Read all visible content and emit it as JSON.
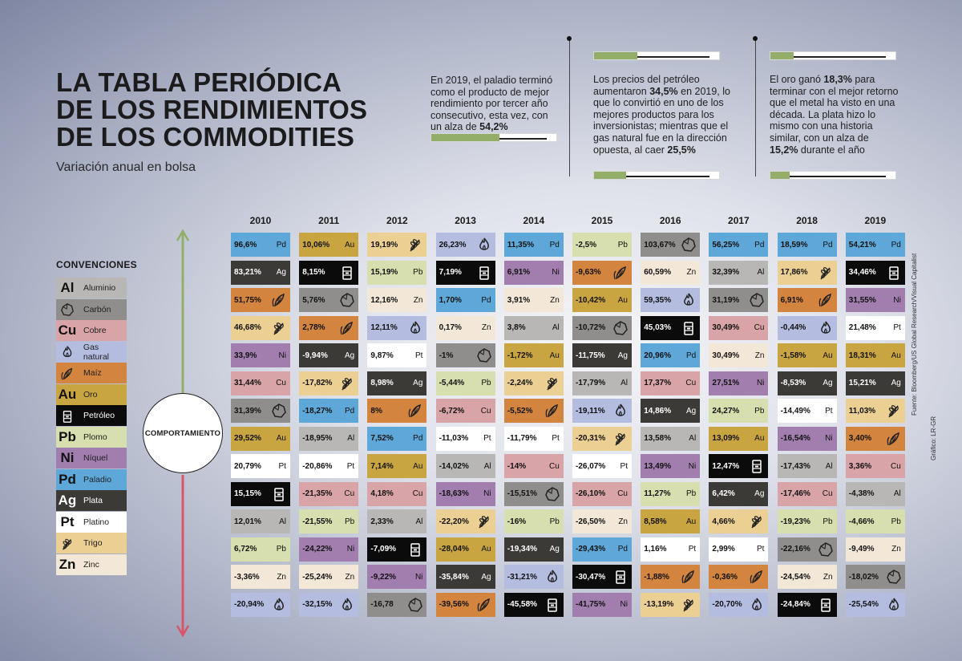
{
  "title": [
    "LA TABLA PERIÓDICA",
    "DE LOS RENDIMIENTOS",
    "DE LOS COMMODITIES"
  ],
  "subtitle": "Variación anual en bolsa",
  "notes": {
    "palladium": {
      "text": "En 2019, el paladio terminó como el producto de mejor rendimiento por tercer año consecutivo, esta vez, con un alza de ",
      "highlight": "54,2%",
      "bar_fraction": 0.542
    },
    "oil": {
      "text_a": "Los precios del petróleo aumentaron ",
      "highlight_a": "34,5%",
      "text_b": " en 2019, lo que lo convirtió en uno de los mejores productos para los inversionistas; mientras que el gas natural fue en la dirección opuesta, al caer ",
      "highlight_b": "25,5%",
      "bar_a_fraction": 0.345,
      "bar_b_fraction": 0.255
    },
    "gold": {
      "text_a": "El oro ganó ",
      "highlight_a": "18,3%",
      "text_b": " para terminar con el mejor retorno que el metal ha visto en una década. La plata hizo lo mismo con una historia similar, con un alza de ",
      "highlight_b": "15,2%",
      "text_c": " durante el año",
      "bar_a_fraction": 0.183,
      "bar_b_fraction": 0.152
    }
  },
  "conventions_title": "CONVENCIONES",
  "colors": {
    "Al": "#b8b7b5",
    "Carbon": "#8f8e8c",
    "Cu": "#d9a4a8",
    "Gas": "#b4bde0",
    "Maiz": "#d3843f",
    "Au": "#c9a542",
    "Petroleo": "#0b0b0b",
    "Pb": "#d7dfae",
    "Ni": "#a17eae",
    "Pd": "#5ea8d9",
    "Ag": "#3c3a37",
    "Pt": "#ffffff",
    "Trigo": "#ecd093",
    "Zn": "#f3e8d7"
  },
  "legend": [
    {
      "key": "Al",
      "symbol": "Al",
      "icon": "",
      "name": "Aluminio"
    },
    {
      "key": "Carbon",
      "symbol": "",
      "icon": "coal-icon",
      "name": "Carbón"
    },
    {
      "key": "Cu",
      "symbol": "Cu",
      "icon": "",
      "name": "Cobre"
    },
    {
      "key": "Gas",
      "symbol": "",
      "icon": "flame-icon",
      "name": "Gas natural"
    },
    {
      "key": "Maiz",
      "symbol": "",
      "icon": "corn-icon",
      "name": "Maíz"
    },
    {
      "key": "Au",
      "symbol": "Au",
      "icon": "",
      "name": "Oro"
    },
    {
      "key": "Petroleo",
      "symbol": "",
      "icon": "oil-barrel-icon",
      "name": "Petróleo"
    },
    {
      "key": "Pb",
      "symbol": "Pb",
      "icon": "",
      "name": "Plomo"
    },
    {
      "key": "Ni",
      "symbol": "Ni",
      "icon": "",
      "name": "Níquel"
    },
    {
      "key": "Pd",
      "symbol": "Pd",
      "icon": "",
      "name": "Paladio"
    },
    {
      "key": "Ag",
      "symbol": "Ag",
      "icon": "",
      "name": "Plata"
    },
    {
      "key": "Pt",
      "symbol": "Pt",
      "icon": "",
      "name": "Platino"
    },
    {
      "key": "Trigo",
      "symbol": "",
      "icon": "wheat-icon",
      "name": "Trigo"
    },
    {
      "key": "Zn",
      "symbol": "Zn",
      "icon": "",
      "name": "Zinc"
    }
  ],
  "behavior_label": "COMPORTAMIENTO",
  "source": "Fuente: Bloomberg/US Global Research/Visual Capitalist",
  "credit": "Gráfico: LR-GR",
  "chart_data": {
    "type": "table",
    "columns": [
      {
        "year": "2010",
        "cells": [
          [
            "96,6%",
            "Pd"
          ],
          [
            "83,21%",
            "Ag"
          ],
          [
            "51,75%",
            "Maiz"
          ],
          [
            "46,68%",
            "Trigo"
          ],
          [
            "33,9%",
            "Ni"
          ],
          [
            "31,44%",
            "Cu"
          ],
          [
            "31,39%",
            "Carbon"
          ],
          [
            "29,52%",
            "Au"
          ],
          [
            "20,79%",
            "Pt"
          ],
          [
            "15,15%",
            "Petroleo"
          ],
          [
            "12,01%",
            "Al"
          ],
          [
            "6,72%",
            "Pb"
          ],
          [
            "-3,36%",
            "Zn"
          ],
          [
            "-20,94%",
            "Gas"
          ]
        ]
      },
      {
        "year": "2011",
        "cells": [
          [
            "10,06%",
            "Au"
          ],
          [
            "8,15%",
            "Petroleo"
          ],
          [
            "5,76%",
            "Carbon"
          ],
          [
            "2,78%",
            "Maiz"
          ],
          [
            "-9,94%",
            "Ag"
          ],
          [
            "-17,82%",
            "Trigo"
          ],
          [
            "-18,27%",
            "Pd"
          ],
          [
            "-18,95%",
            "Al"
          ],
          [
            "-20,86%",
            "Pt"
          ],
          [
            "-21,35%",
            "Cu"
          ],
          [
            "-21,55%",
            "Pb"
          ],
          [
            "-24,22%",
            "Ni"
          ],
          [
            "-25,24%",
            "Zn"
          ],
          [
            "-32,15%",
            "Gas"
          ]
        ]
      },
      {
        "year": "2012",
        "cells": [
          [
            "19,19%",
            "Trigo"
          ],
          [
            "15,19%",
            "Pb"
          ],
          [
            "12,16%",
            "Zn"
          ],
          [
            "12,11%",
            "Gas"
          ],
          [
            "9,87%",
            "Pt"
          ],
          [
            "8,98%",
            "Ag"
          ],
          [
            "8%",
            "Maiz"
          ],
          [
            "7,52%",
            "Pd"
          ],
          [
            "7,14%",
            "Au"
          ],
          [
            "4,18%",
            "Cu"
          ],
          [
            "2,33%",
            "Al"
          ],
          [
            "-7,09%",
            "Petroleo"
          ],
          [
            "-9,22%",
            "Ni"
          ],
          [
            "-16,78",
            "Carbon"
          ]
        ]
      },
      {
        "year": "2013",
        "cells": [
          [
            "26,23%",
            "Gas"
          ],
          [
            "7,19%",
            "Petroleo"
          ],
          [
            "1,70%",
            "Pd"
          ],
          [
            "0,17%",
            "Zn"
          ],
          [
            "-1%",
            "Carbon"
          ],
          [
            "-5,44%",
            "Pb"
          ],
          [
            "-6,72%",
            "Cu"
          ],
          [
            "-11,03%",
            "Pt"
          ],
          [
            "-14,02%",
            "Al"
          ],
          [
            "-18,63%",
            "Ni"
          ],
          [
            "-22,20%",
            "Trigo"
          ],
          [
            "-28,04%",
            "Au"
          ],
          [
            "-35,84%",
            "Ag"
          ],
          [
            "-39,56%",
            "Maiz"
          ]
        ]
      },
      {
        "year": "2014",
        "cells": [
          [
            "11,35%",
            "Pd"
          ],
          [
            "6,91%",
            "Ni"
          ],
          [
            "3,91%",
            "Zn"
          ],
          [
            "3,8%",
            "Al"
          ],
          [
            "-1,72%",
            "Au"
          ],
          [
            "-2,24%",
            "Trigo"
          ],
          [
            "-5,52%",
            "Maiz"
          ],
          [
            "-11,79%",
            "Pt"
          ],
          [
            "-14%",
            "Cu"
          ],
          [
            "-15,51%",
            "Carbon"
          ],
          [
            "-16%",
            "Pb"
          ],
          [
            "-19,34%",
            "Ag"
          ],
          [
            "-31,21%",
            "Gas"
          ],
          [
            "-45,58%",
            "Petroleo"
          ]
        ]
      },
      {
        "year": "2015",
        "cells": [
          [
            "-2,5%",
            "Pb"
          ],
          [
            "-9,63%",
            "Maiz"
          ],
          [
            "-10,42%",
            "Au"
          ],
          [
            "-10,72%",
            "Carbon"
          ],
          [
            "-11,75%",
            "Ag"
          ],
          [
            "-17,79%",
            "Al"
          ],
          [
            "-19,11%",
            "Gas"
          ],
          [
            "-20,31%",
            "Trigo"
          ],
          [
            "-26,07%",
            "Pt"
          ],
          [
            "-26,10%",
            "Cu"
          ],
          [
            "-26,50%",
            "Zn"
          ],
          [
            "-29,43%",
            "Pd"
          ],
          [
            "-30,47%",
            "Petroleo"
          ],
          [
            "-41,75%",
            "Ni"
          ]
        ]
      },
      {
        "year": "2016",
        "cells": [
          [
            "103,67%",
            "Carbon"
          ],
          [
            "60,59%",
            "Zn"
          ],
          [
            "59,35%",
            "Gas"
          ],
          [
            "45,03%",
            "Petroleo"
          ],
          [
            "20,96%",
            "Pd"
          ],
          [
            "17,37%",
            "Cu"
          ],
          [
            "14,86%",
            "Ag"
          ],
          [
            "13,58%",
            "Al"
          ],
          [
            "13,49%",
            "Ni"
          ],
          [
            "11,27%",
            "Pb"
          ],
          [
            "8,58%",
            "Au"
          ],
          [
            "1,16%",
            "Pt"
          ],
          [
            "-1,88%",
            "Maiz"
          ],
          [
            "-13,19%",
            "Trigo"
          ]
        ]
      },
      {
        "year": "2017",
        "cells": [
          [
            "56,25%",
            "Pd"
          ],
          [
            "32,39%",
            "Al"
          ],
          [
            "31,19%",
            "Carbon"
          ],
          [
            "30,49%",
            "Cu"
          ],
          [
            "30,49%",
            "Zn"
          ],
          [
            "27,51%",
            "Ni"
          ],
          [
            "24,27%",
            "Pb"
          ],
          [
            "13,09%",
            "Au"
          ],
          [
            "12,47%",
            "Petroleo"
          ],
          [
            "6,42%",
            "Ag"
          ],
          [
            "4,66%",
            "Trigo"
          ],
          [
            "2,99%",
            "Pt"
          ],
          [
            "-0,36%",
            "Maiz"
          ],
          [
            "-20,70%",
            "Gas"
          ]
        ]
      },
      {
        "year": "2018",
        "cells": [
          [
            "18,59%",
            "Pd"
          ],
          [
            "17,86%",
            "Trigo"
          ],
          [
            "6,91%",
            "Maiz"
          ],
          [
            "-0,44%",
            "Gas"
          ],
          [
            "-1,58%",
            "Au"
          ],
          [
            "-8,53%",
            "Ag"
          ],
          [
            "-14,49%",
            "Pt"
          ],
          [
            "-16,54%",
            "Ni"
          ],
          [
            "-17,43%",
            "Al"
          ],
          [
            "-17,46%",
            "Cu"
          ],
          [
            "-19,23%",
            "Pb"
          ],
          [
            "-22,16%",
            "Carbon"
          ],
          [
            "-24,54%",
            "Zn"
          ],
          [
            "-24,84%",
            "Petroleo"
          ]
        ]
      },
      {
        "year": "2019",
        "cells": [
          [
            "54,21%",
            "Pd"
          ],
          [
            "34,46%",
            "Petroleo"
          ],
          [
            "31,55%",
            "Ni"
          ],
          [
            "21,48%",
            "Pt"
          ],
          [
            "18,31%",
            "Au"
          ],
          [
            "15,21%",
            "Ag"
          ],
          [
            "11,03%",
            "Trigo"
          ],
          [
            "3,40%",
            "Maiz"
          ],
          [
            "3,36%",
            "Cu"
          ],
          [
            "-4,38%",
            "Al"
          ],
          [
            "-4,66%",
            "Pb"
          ],
          [
            "-9,49%",
            "Zn"
          ],
          [
            "-18,02%",
            "Carbon"
          ],
          [
            "-25,54%",
            "Gas"
          ]
        ]
      }
    ]
  }
}
